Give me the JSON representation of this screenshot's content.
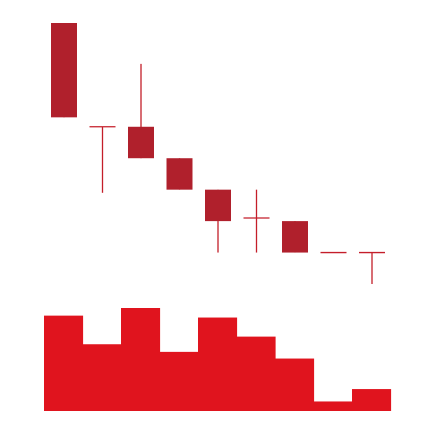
{
  "chart_data": {
    "type": "candlestick",
    "grid": false,
    "legend": "none",
    "colors": {
      "down_body": "#b0202c",
      "wick": "#c41e2a",
      "volume": "#e0141e"
    },
    "candles": [
      {
        "open": 100,
        "high": 100,
        "low": 70,
        "close": 70
      },
      {
        "open": 67,
        "high": 67,
        "low": 46,
        "close": 67
      },
      {
        "open": 67,
        "high": 87,
        "low": 57,
        "close": 57
      },
      {
        "open": 57,
        "high": 57,
        "low": 47,
        "close": 47
      },
      {
        "open": 47,
        "high": 47,
        "low": 27,
        "close": 37
      },
      {
        "open": 38,
        "high": 47,
        "low": 27,
        "close": 38
      },
      {
        "open": 37,
        "high": 37,
        "low": 27,
        "close": 27
      },
      {
        "open": 27,
        "high": 27,
        "low": 27,
        "close": 27
      },
      {
        "open": 27,
        "high": 27,
        "low": 17,
        "close": 27
      }
    ],
    "volume": [
      100,
      70,
      108,
      62,
      98,
      78,
      55,
      10,
      23
    ]
  }
}
